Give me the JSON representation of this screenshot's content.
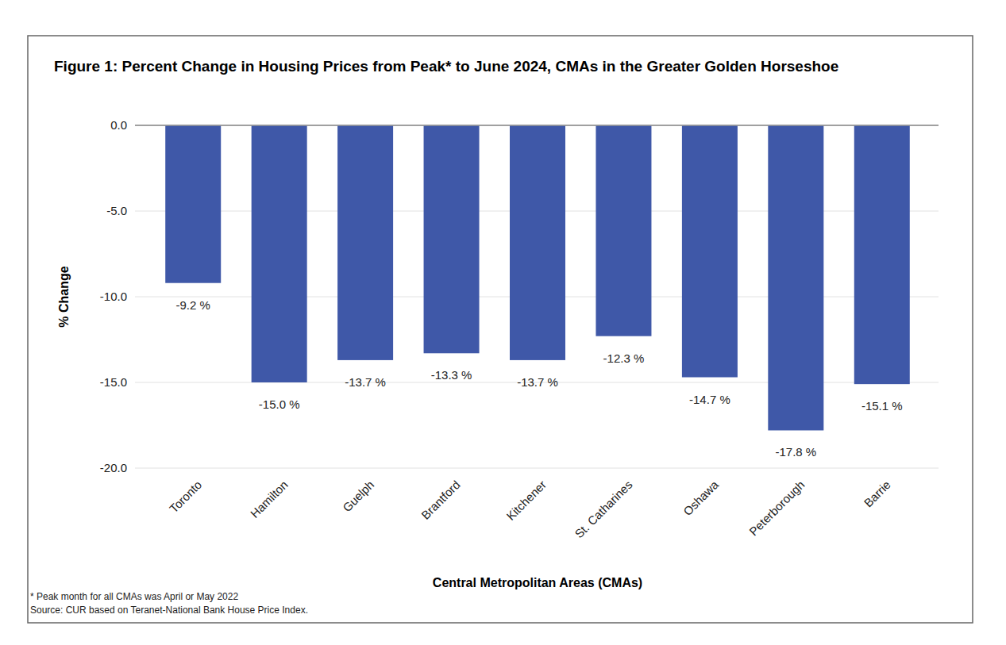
{
  "chart_data": {
    "type": "bar",
    "title": "Figure 1: Percent Change in Housing Prices from Peak* to June 2024, CMAs in the Greater Golden Horseshoe",
    "xlabel": "Central Metropolitan Areas (CMAs)",
    "ylabel": "% Change",
    "categories": [
      "Toronto",
      "Hamilton",
      "Guelph",
      "Brantford",
      "Kitchener",
      "St. Catharines",
      "Oshawa",
      "Peterborough",
      "Barrie"
    ],
    "values": [
      -9.2,
      -15.0,
      -13.7,
      -13.3,
      -13.7,
      -12.3,
      -14.7,
      -17.8,
      -15.1
    ],
    "value_labels": [
      "-9.2 %",
      "-15.0 %",
      "-13.7 %",
      "-13.3 %",
      "-13.7 %",
      "-12.3 %",
      "-14.7 %",
      "-17.8 %",
      "-15.1 %"
    ],
    "color": "#3f58a8",
    "ylim": [
      -20,
      0
    ],
    "yticks": [
      {
        "value": 0,
        "label": "0.0"
      },
      {
        "value": -5,
        "label": "-5.0"
      },
      {
        "value": -10,
        "label": "-10.0"
      },
      {
        "value": -15,
        "label": "-15.0"
      },
      {
        "value": -20,
        "label": "-20.0"
      }
    ],
    "grid": true,
    "data_labels": true,
    "annotations": [
      "* Peak month for all CMAs was April or May 2022",
      "Source: CUR based on Teranet-National Bank House Price Index."
    ]
  }
}
